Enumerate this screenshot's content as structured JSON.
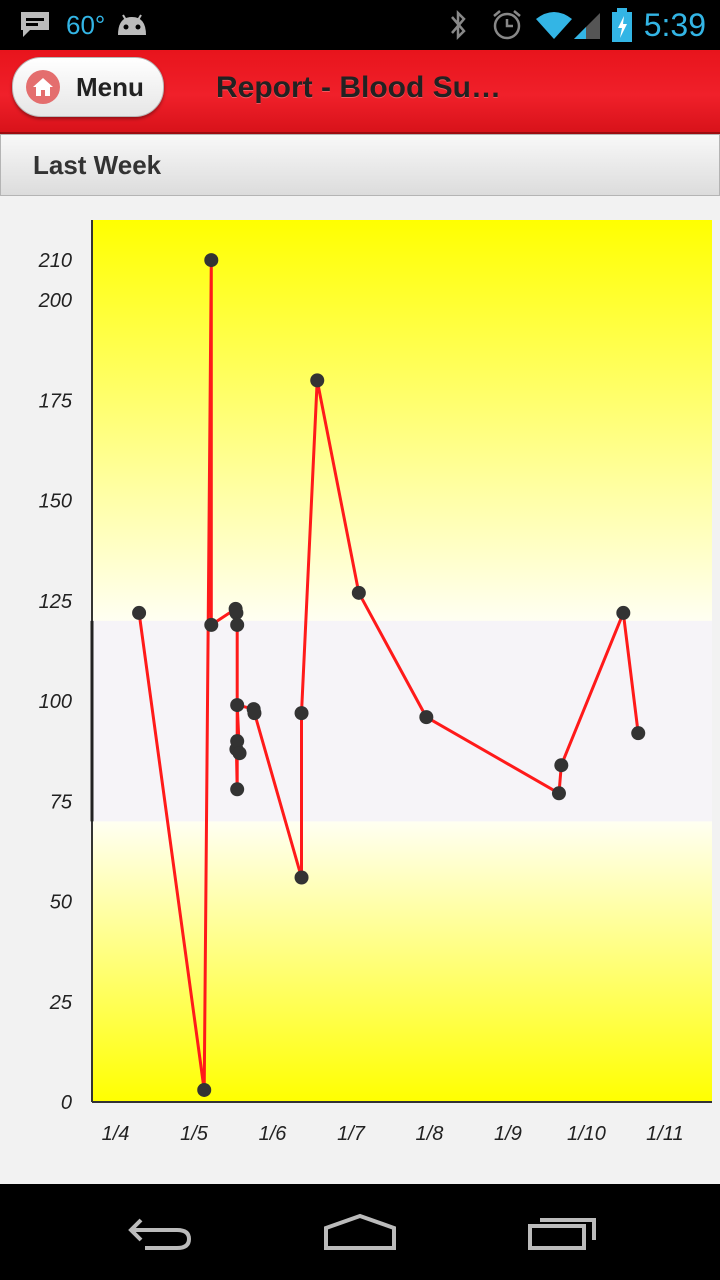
{
  "status_bar": {
    "temperature": "60°",
    "time": "5:39",
    "icons": [
      "message-icon",
      "android-icon",
      "bluetooth-icon",
      "alarm-icon",
      "wifi-icon",
      "signal-icon",
      "battery-charging-icon"
    ]
  },
  "header": {
    "menu_label": "Menu",
    "menu_icon": "home-icon",
    "title": "Report - Blood Su…"
  },
  "period": {
    "label": "Last Week"
  },
  "chart_data": {
    "type": "line",
    "title": "",
    "xlabel": "",
    "ylabel": "",
    "ylim": [
      0,
      220
    ],
    "yticks": [
      0,
      25,
      50,
      75,
      100,
      125,
      150,
      175,
      200,
      210
    ],
    "xlim": [
      3.7,
      11.6
    ],
    "xticks": [
      {
        "value": 4,
        "label": "1/4"
      },
      {
        "value": 5,
        "label": "1/5"
      },
      {
        "value": 6,
        "label": "1/6"
      },
      {
        "value": 7,
        "label": "1/7"
      },
      {
        "value": 8,
        "label": "1/8"
      },
      {
        "value": 9,
        "label": "1/9"
      },
      {
        "value": 10,
        "label": "1/10"
      },
      {
        "value": 11,
        "label": "1/11"
      }
    ],
    "target_range": [
      70,
      120
    ],
    "colors": {
      "line": "#ff1a1a",
      "marker": "#333333",
      "band_outside": "#ffff00",
      "band_target": "#f6f4f8"
    },
    "grid": false,
    "series": [
      {
        "points": [
          {
            "x": 4.3,
            "y": 122
          },
          {
            "x": 5.13,
            "y": 3
          },
          {
            "x": 5.22,
            "y": 210
          },
          {
            "x": 5.22,
            "y": 119
          },
          {
            "x": 5.53,
            "y": 123
          },
          {
            "x": 5.54,
            "y": 122
          },
          {
            "x": 5.55,
            "y": 119
          },
          {
            "x": 5.55,
            "y": 78
          },
          {
            "x": 5.54,
            "y": 88
          },
          {
            "x": 5.55,
            "y": 90
          },
          {
            "x": 5.58,
            "y": 87
          },
          {
            "x": 5.55,
            "y": 99
          },
          {
            "x": 5.76,
            "y": 98
          },
          {
            "x": 5.77,
            "y": 97
          },
          {
            "x": 6.37,
            "y": 56
          },
          {
            "x": 6.37,
            "y": 97
          },
          {
            "x": 6.57,
            "y": 180
          },
          {
            "x": 7.1,
            "y": 127
          },
          {
            "x": 7.96,
            "y": 96
          },
          {
            "x": 9.65,
            "y": 77
          },
          {
            "x": 9.68,
            "y": 84
          },
          {
            "x": 10.47,
            "y": 122
          },
          {
            "x": 10.66,
            "y": 92
          }
        ]
      }
    ]
  }
}
